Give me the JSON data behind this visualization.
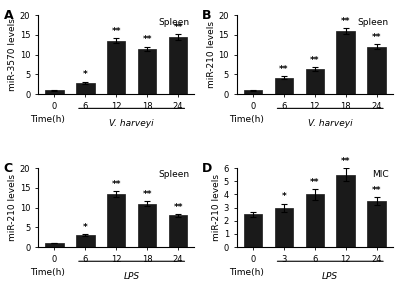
{
  "panels": [
    {
      "label": "A",
      "ylabel": "miR-3570 levels",
      "title": "Spleen",
      "xlabel_label": "Time(h)",
      "x_ticks": [
        "0",
        "6",
        "12",
        "18",
        "24"
      ],
      "values": [
        1.0,
        2.9,
        13.5,
        11.5,
        14.5
      ],
      "errors": [
        0.1,
        0.3,
        0.6,
        0.5,
        0.7
      ],
      "sig": [
        "",
        "*",
        "**",
        "**",
        "**"
      ],
      "ylim": [
        0,
        20
      ],
      "yticks": [
        0,
        5,
        10,
        15,
        20
      ],
      "treatment_label": "V. harveyi"
    },
    {
      "label": "B",
      "ylabel": "miR-210 levels",
      "title": "Spleen",
      "xlabel_label": "Time(h)",
      "x_ticks": [
        "0",
        "6",
        "12",
        "18",
        "24"
      ],
      "values": [
        1.0,
        4.2,
        6.3,
        16.0,
        12.0
      ],
      "errors": [
        0.1,
        0.4,
        0.5,
        0.7,
        0.6
      ],
      "sig": [
        "",
        "**",
        "**",
        "**",
        "**"
      ],
      "ylim": [
        0,
        20
      ],
      "yticks": [
        0,
        5,
        10,
        15,
        20
      ],
      "treatment_label": "V. harveyi"
    },
    {
      "label": "C",
      "ylabel": "miR-210 levels",
      "title": "Spleen",
      "xlabel_label": "Time(h)",
      "x_ticks": [
        "0",
        "6",
        "12",
        "18",
        "24"
      ],
      "values": [
        1.0,
        3.0,
        13.5,
        11.0,
        8.0
      ],
      "errors": [
        0.1,
        0.3,
        0.7,
        0.6,
        0.4
      ],
      "sig": [
        "",
        "*",
        "**",
        "**",
        "**"
      ],
      "ylim": [
        0,
        20
      ],
      "yticks": [
        0,
        5,
        10,
        15,
        20
      ],
      "treatment_label": "LPS"
    },
    {
      "label": "D",
      "ylabel": "miR-210 levels",
      "title": "MIC",
      "xlabel_label": "Time(h)",
      "x_ticks": [
        "0",
        "3",
        "6",
        "12",
        "24"
      ],
      "values": [
        2.5,
        3.0,
        4.0,
        5.5,
        3.5
      ],
      "errors": [
        0.2,
        0.3,
        0.4,
        0.5,
        0.3
      ],
      "sig": [
        "",
        "*",
        "**",
        "**",
        "**"
      ],
      "ylim": [
        0,
        6
      ],
      "yticks": [
        0,
        1,
        2,
        3,
        4,
        5,
        6
      ],
      "treatment_label": "LPS"
    }
  ],
  "bar_color": "#1a1a1a",
  "bar_edge_color": "#1a1a1a",
  "bg_color": "#ffffff",
  "sig_fontsize": 6.5,
  "title_fontsize": 6.5,
  "label_fontsize": 6.5,
  "tick_fontsize": 6
}
